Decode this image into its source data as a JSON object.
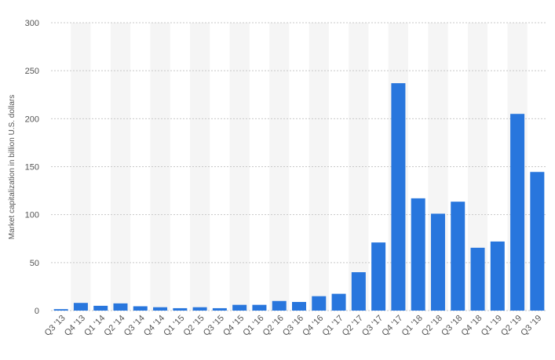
{
  "chart_data": {
    "type": "bar",
    "y_axis_label": "Market capitalization in billion U.S. dollars",
    "categories": [
      "Q3 '13",
      "Q4 '13",
      "Q1 '14",
      "Q2 '14",
      "Q3 '14",
      "Q4 '14",
      "Q1 '15",
      "Q2 '15",
      "Q3 '15",
      "Q4 '15",
      "Q1 '16",
      "Q2 '16",
      "Q3 '16",
      "Q4 '16",
      "Q1 '17",
      "Q2 '17",
      "Q3 '17",
      "Q4 '17",
      "Q1 '18",
      "Q2 '18",
      "Q3 '18",
      "Q4 '18",
      "Q1 '19",
      "Q2 '19",
      "Q3 '19"
    ],
    "values": [
      1.5,
      8,
      5,
      7.5,
      4.5,
      3.5,
      2.5,
      3.5,
      2.5,
      6,
      6,
      10,
      9,
      15,
      17.5,
      40,
      71,
      237,
      117,
      101,
      113.5,
      65.5,
      72,
      205,
      144.5
    ],
    "color": "#2876dd",
    "ylim": [
      0,
      300
    ],
    "yticks": [
      0,
      50,
      100,
      150,
      200,
      250,
      300
    ],
    "grid": true
  }
}
